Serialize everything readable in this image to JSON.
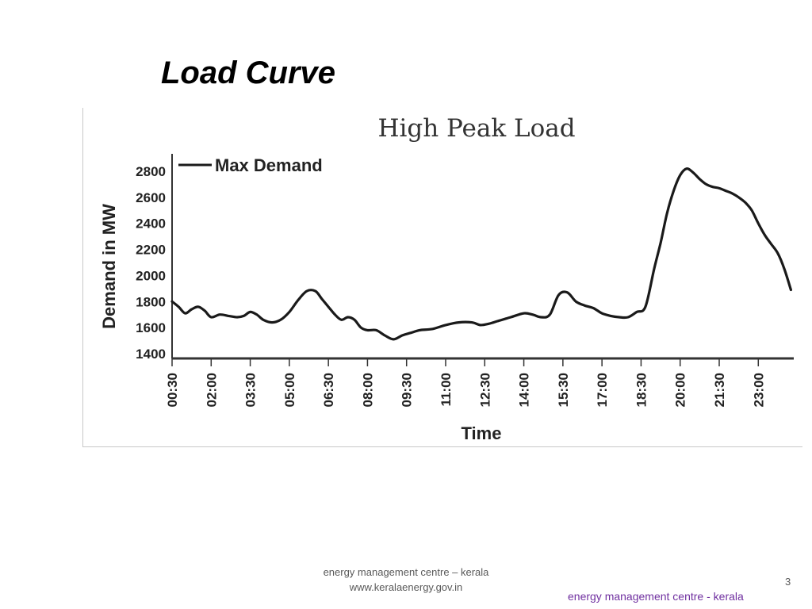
{
  "slide": {
    "title": "Load Curve",
    "footer_line1": "energy management centre – kerala",
    "footer_line2": "www.keralaenergy.gov.in",
    "page_number": "3",
    "footer_right": "energy management centre - kerala"
  },
  "colors": {
    "line": "#1a1a1a",
    "axis": "#333333",
    "footer_right": "#7030a0"
  },
  "chart_data": {
    "type": "line",
    "title": "High Peak Load",
    "xlabel": "Time",
    "ylabel": "Demand in MW",
    "legend": {
      "position": "top-left",
      "entries": [
        "Max Demand"
      ]
    },
    "grid": false,
    "y_ticks": [
      1400,
      1600,
      1800,
      2000,
      2200,
      2400,
      2600,
      2800
    ],
    "ylim": [
      1400,
      2850
    ],
    "x_ticks": [
      "00:30",
      "02:00",
      "03:30",
      "05:00",
      "06:30",
      "08:00",
      "09:30",
      "11:00",
      "12:30",
      "14:00",
      "15:30",
      "17:00",
      "18:30",
      "20:00",
      "21:30",
      "23:00"
    ],
    "x_hour_range": [
      0.5,
      24.3
    ],
    "series": [
      {
        "name": "Max Demand",
        "points": [
          [
            "00:30",
            1800
          ],
          [
            "00:45",
            1760
          ],
          [
            "01:00",
            1710
          ],
          [
            "01:15",
            1740
          ],
          [
            "01:30",
            1760
          ],
          [
            "01:45",
            1730
          ],
          [
            "02:00",
            1680
          ],
          [
            "02:20",
            1700
          ],
          [
            "02:40",
            1690
          ],
          [
            "03:00",
            1680
          ],
          [
            "03:15",
            1690
          ],
          [
            "03:30",
            1720
          ],
          [
            "03:45",
            1700
          ],
          [
            "04:00",
            1660
          ],
          [
            "04:20",
            1640
          ],
          [
            "04:40",
            1660
          ],
          [
            "05:00",
            1720
          ],
          [
            "05:20",
            1810
          ],
          [
            "05:40",
            1880
          ],
          [
            "06:00",
            1880
          ],
          [
            "06:15",
            1820
          ],
          [
            "06:30",
            1760
          ],
          [
            "06:45",
            1700
          ],
          [
            "07:00",
            1660
          ],
          [
            "07:15",
            1680
          ],
          [
            "07:30",
            1660
          ],
          [
            "07:45",
            1600
          ],
          [
            "08:00",
            1580
          ],
          [
            "08:20",
            1580
          ],
          [
            "08:40",
            1540
          ],
          [
            "09:00",
            1510
          ],
          [
            "09:20",
            1540
          ],
          [
            "09:40",
            1560
          ],
          [
            "10:00",
            1580
          ],
          [
            "10:30",
            1590
          ],
          [
            "11:00",
            1620
          ],
          [
            "11:30",
            1640
          ],
          [
            "12:00",
            1640
          ],
          [
            "12:20",
            1620
          ],
          [
            "12:40",
            1630
          ],
          [
            "13:00",
            1650
          ],
          [
            "13:30",
            1680
          ],
          [
            "14:00",
            1710
          ],
          [
            "14:20",
            1700
          ],
          [
            "14:40",
            1680
          ],
          [
            "15:00",
            1700
          ],
          [
            "15:20",
            1850
          ],
          [
            "15:40",
            1870
          ],
          [
            "16:00",
            1800
          ],
          [
            "16:20",
            1770
          ],
          [
            "16:40",
            1750
          ],
          [
            "17:00",
            1710
          ],
          [
            "17:20",
            1690
          ],
          [
            "17:40",
            1680
          ],
          [
            "18:00",
            1680
          ],
          [
            "18:20",
            1720
          ],
          [
            "18:40",
            1760
          ],
          [
            "19:00",
            2050
          ],
          [
            "19:15",
            2250
          ],
          [
            "19:30",
            2480
          ],
          [
            "19:45",
            2650
          ],
          [
            "20:00",
            2770
          ],
          [
            "20:15",
            2820
          ],
          [
            "20:30",
            2790
          ],
          [
            "20:45",
            2740
          ],
          [
            "21:00",
            2700
          ],
          [
            "21:15",
            2680
          ],
          [
            "21:30",
            2670
          ],
          [
            "21:45",
            2650
          ],
          [
            "22:00",
            2630
          ],
          [
            "22:15",
            2600
          ],
          [
            "22:30",
            2560
          ],
          [
            "22:45",
            2500
          ],
          [
            "23:00",
            2400
          ],
          [
            "23:15",
            2310
          ],
          [
            "23:30",
            2240
          ],
          [
            "23:45",
            2170
          ],
          [
            "24:00",
            2050
          ],
          [
            "24:15",
            1890
          ]
        ]
      }
    ]
  }
}
